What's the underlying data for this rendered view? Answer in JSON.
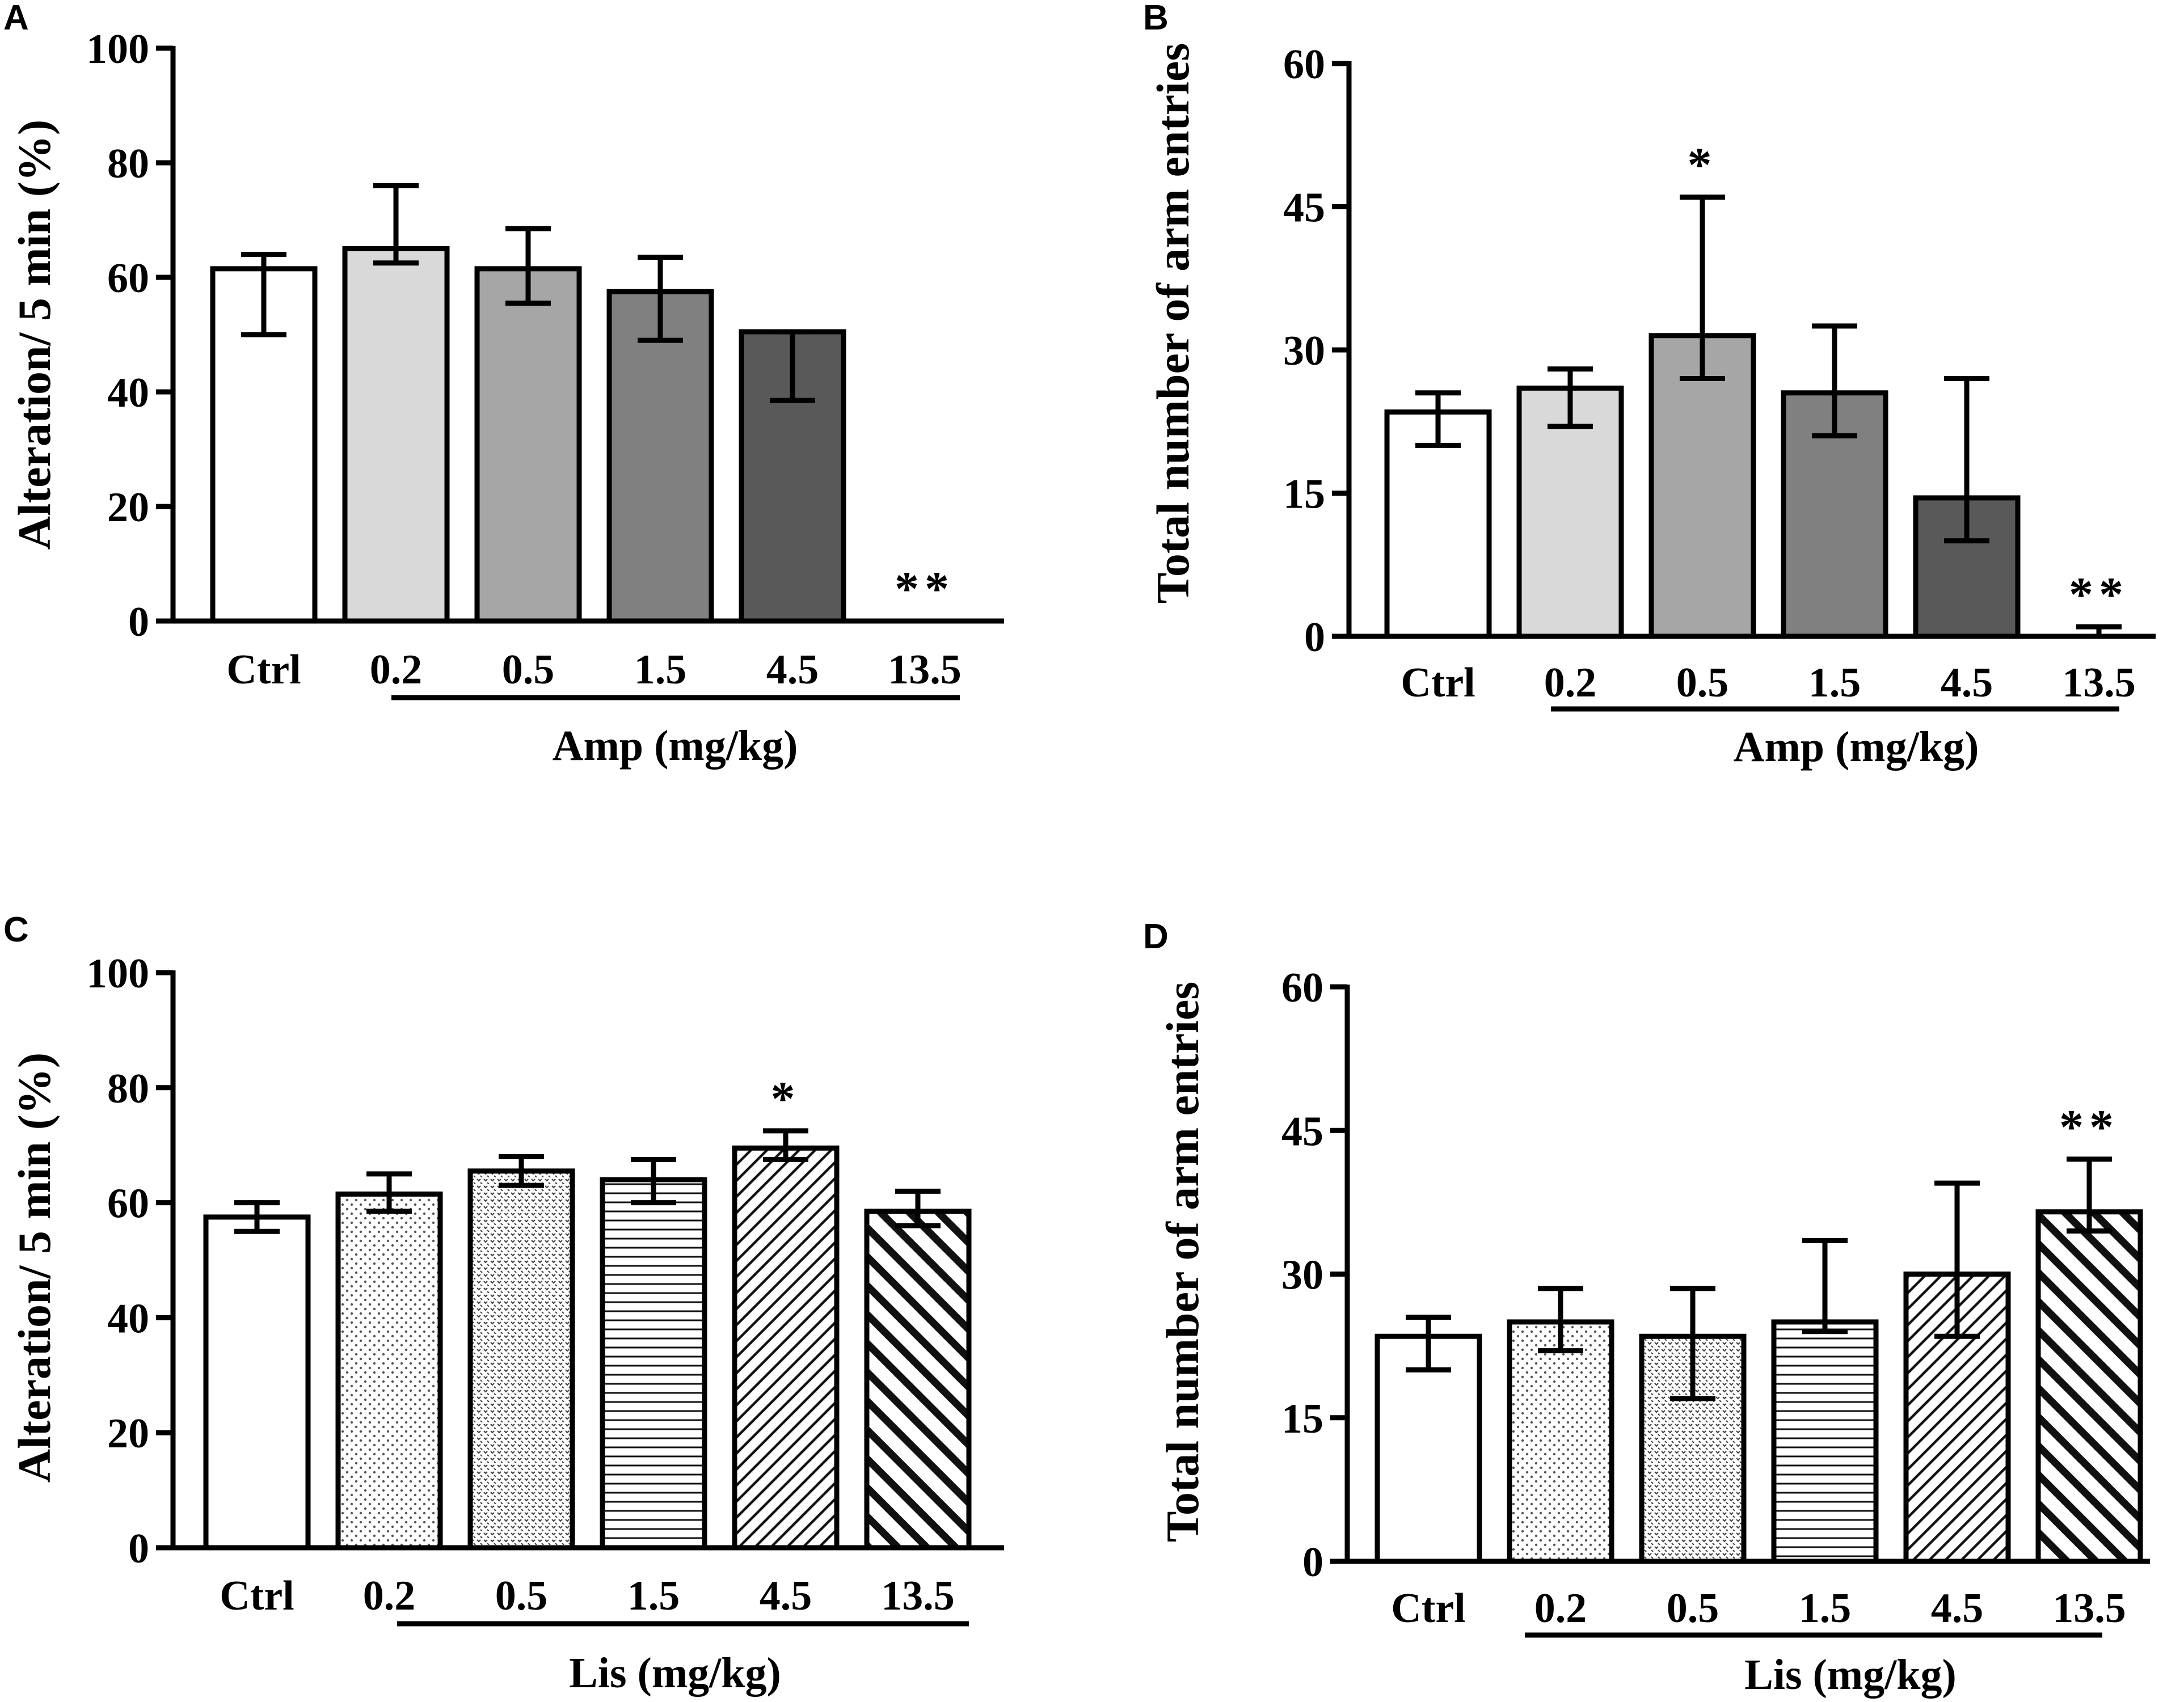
{
  "chart_data": [
    {
      "panel": "A",
      "type": "bar",
      "categories": [
        "Ctrl",
        "0.2",
        "0.5",
        "1.5",
        "4.5",
        "13.5"
      ],
      "values": [
        61.5,
        65,
        61.5,
        57.5,
        50.5,
        0
      ],
      "err_upper": [
        64,
        76,
        68.5,
        63.5,
        50.5,
        0
      ],
      "err_lower": [
        50,
        62.5,
        55.5,
        49,
        38.5,
        0
      ],
      "significance": [
        "",
        "",
        "",
        "",
        "",
        "**"
      ],
      "ylabel": "Alteration/ 5 min (%)",
      "ylim": [
        0,
        100
      ],
      "yticks": [
        "0",
        "20",
        "40",
        "60",
        "80",
        "100"
      ],
      "group_label": "Amp (mg/kg)",
      "fills": [
        "#ffffff",
        "#d9d9d9",
        "#a6a6a6",
        "#808080",
        "#595959",
        "#404040"
      ],
      "patterns": [
        "none",
        "none",
        "none",
        "none",
        "none",
        "none"
      ]
    },
    {
      "panel": "B",
      "type": "bar",
      "categories": [
        "Ctrl",
        "0.2",
        "0.5",
        "1.5",
        "4.5",
        "13.5"
      ],
      "values": [
        23.5,
        26,
        31.5,
        25.5,
        14.5,
        0
      ],
      "err_upper": [
        25.5,
        28,
        46,
        32.5,
        27,
        1
      ],
      "err_lower": [
        20,
        22,
        27,
        21,
        10,
        0
      ],
      "significance": [
        "",
        "",
        "*",
        "",
        "",
        "**"
      ],
      "ylabel": "Total number of arm entries",
      "ylim": [
        0,
        60
      ],
      "yticks": [
        "0",
        "15",
        "30",
        "45",
        "60"
      ],
      "group_label": "Amp (mg/kg)",
      "fills": [
        "#ffffff",
        "#d9d9d9",
        "#a6a6a6",
        "#808080",
        "#595959",
        "#404040"
      ],
      "patterns": [
        "none",
        "none",
        "none",
        "none",
        "none",
        "none"
      ]
    },
    {
      "panel": "C",
      "type": "bar",
      "categories": [
        "Ctrl",
        "0.2",
        "0.5",
        "1.5",
        "4.5",
        "13.5"
      ],
      "values": [
        57.5,
        61.5,
        65.5,
        64,
        69.5,
        58.5
      ],
      "err_upper": [
        60,
        65,
        68,
        67.5,
        72.5,
        62
      ],
      "err_lower": [
        55,
        58.5,
        63,
        60,
        67.5,
        56
      ],
      "significance": [
        "",
        "",
        "",
        "",
        "*",
        ""
      ],
      "ylabel": "Alteration/ 5 min (%)",
      "ylim": [
        0,
        100
      ],
      "yticks": [
        "0",
        "20",
        "40",
        "60",
        "80",
        "100"
      ],
      "group_label": "Lis (mg/kg)",
      "fills": [
        "#ffffff",
        "#ffffff",
        "#ffffff",
        "#ffffff",
        "#ffffff",
        "#ffffff"
      ],
      "patterns": [
        "none",
        "dots",
        "dense-dots",
        "hlines",
        "diag-fine",
        "diag-bold"
      ]
    },
    {
      "panel": "D",
      "type": "bar",
      "categories": [
        "Ctrl",
        "0.2",
        "0.5",
        "1.5",
        "4.5",
        "13.5"
      ],
      "values": [
        23.5,
        25,
        23.5,
        25,
        30,
        36.5
      ],
      "err_upper": [
        25.5,
        28.5,
        28.5,
        33.5,
        39.5,
        42
      ],
      "err_lower": [
        20,
        22,
        17,
        24,
        23.5,
        34.5
      ],
      "significance": [
        "",
        "",
        "",
        "",
        "",
        "**"
      ],
      "ylabel": "Total number of arm entries",
      "ylim": [
        0,
        60
      ],
      "yticks": [
        "0",
        "15",
        "30",
        "45",
        "60"
      ],
      "group_label": "Lis (mg/kg)",
      "fills": [
        "#ffffff",
        "#ffffff",
        "#ffffff",
        "#ffffff",
        "#ffffff",
        "#ffffff"
      ],
      "patterns": [
        "none",
        "dots",
        "dense-dots",
        "hlines",
        "diag-fine",
        "diag-bold"
      ]
    }
  ]
}
